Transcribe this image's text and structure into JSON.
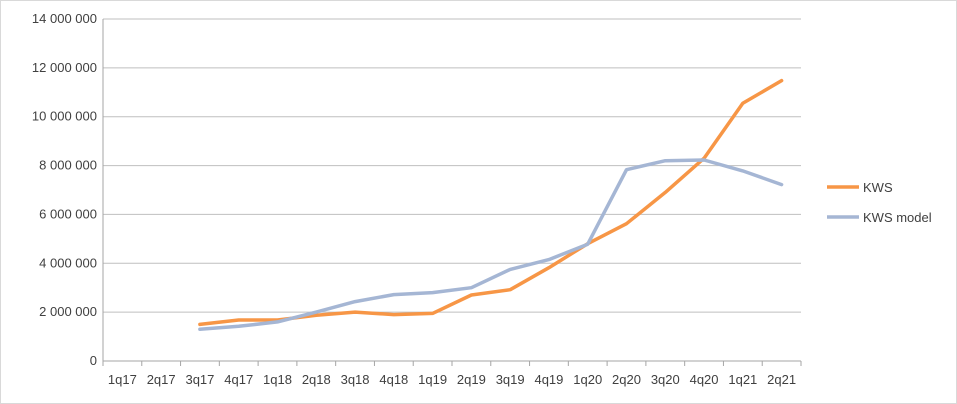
{
  "chart_data": {
    "type": "line",
    "title": "",
    "xlabel": "",
    "ylabel": "",
    "categories": [
      "1q17",
      "2q17",
      "3q17",
      "4q17",
      "1q18",
      "2q18",
      "3q18",
      "4q18",
      "1q19",
      "2q19",
      "3q19",
      "4q19",
      "1q20",
      "2q20",
      "3q20",
      "4q20",
      "1q21",
      "2q21"
    ],
    "ylim": [
      0,
      14000000
    ],
    "yticks": [
      0,
      2000000,
      4000000,
      6000000,
      8000000,
      10000000,
      12000000,
      14000000
    ],
    "ytick_labels": [
      "0",
      "2 000 000",
      "4 000 000",
      "6 000 000",
      "8 000 000",
      "10 000 000",
      "12 000 000",
      "14 000 000"
    ],
    "grid": true,
    "legend_position": "right",
    "series": [
      {
        "name": "KWS",
        "color": "#F79646",
        "values": [
          null,
          null,
          1500000,
          1680000,
          1680000,
          1870000,
          2000000,
          1900000,
          1950000,
          2700000,
          2920000,
          3820000,
          4800000,
          5620000,
          6900000,
          8300000,
          10550000,
          11480000
        ]
      },
      {
        "name": "KWS model",
        "color": "#A5B6D4",
        "values": [
          null,
          null,
          1300000,
          1420000,
          1600000,
          2000000,
          2430000,
          2720000,
          2800000,
          3000000,
          3750000,
          4150000,
          4780000,
          7830000,
          8200000,
          8230000,
          7780000,
          7220000
        ]
      }
    ]
  }
}
